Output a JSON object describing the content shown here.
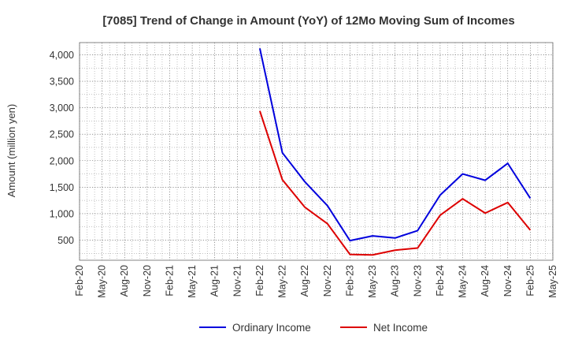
{
  "chart_data": {
    "type": "line",
    "title": "[7085]  Trend of Change in Amount (YoY) of 12Mo Moving Sum of Incomes",
    "ylabel": "Amount (million yen)",
    "xlabel": "",
    "ylim": [
      120,
      4230
    ],
    "yticks": [
      500,
      1000,
      1500,
      2000,
      2500,
      3000,
      3500,
      4000
    ],
    "ytick_labels": [
      "500",
      "1,000",
      "1,500",
      "2,000",
      "2,500",
      "3,000",
      "3,500",
      "4,000"
    ],
    "categories": [
      "Feb-20",
      "May-20",
      "Aug-20",
      "Nov-20",
      "Feb-21",
      "May-21",
      "Aug-21",
      "Nov-21",
      "Feb-22",
      "May-22",
      "Aug-22",
      "Nov-22",
      "Feb-23",
      "May-23",
      "Aug-23",
      "Nov-23",
      "Feb-24",
      "May-24",
      "Aug-24",
      "Nov-24",
      "Feb-25",
      "May-25"
    ],
    "grid": true,
    "legend_position": "bottom",
    "series": [
      {
        "name": "Ordinary Income",
        "color": "#0000dd",
        "values": [
          null,
          null,
          null,
          null,
          null,
          null,
          null,
          null,
          4120,
          2150,
          1600,
          1150,
          490,
          580,
          540,
          680,
          1350,
          1750,
          1630,
          1950,
          1290,
          null
        ]
      },
      {
        "name": "Net Income",
        "color": "#dd0000",
        "values": [
          null,
          null,
          null,
          null,
          null,
          null,
          null,
          null,
          2940,
          1640,
          1120,
          810,
          230,
          220,
          310,
          350,
          970,
          1280,
          1010,
          1210,
          690,
          null
        ]
      }
    ]
  }
}
